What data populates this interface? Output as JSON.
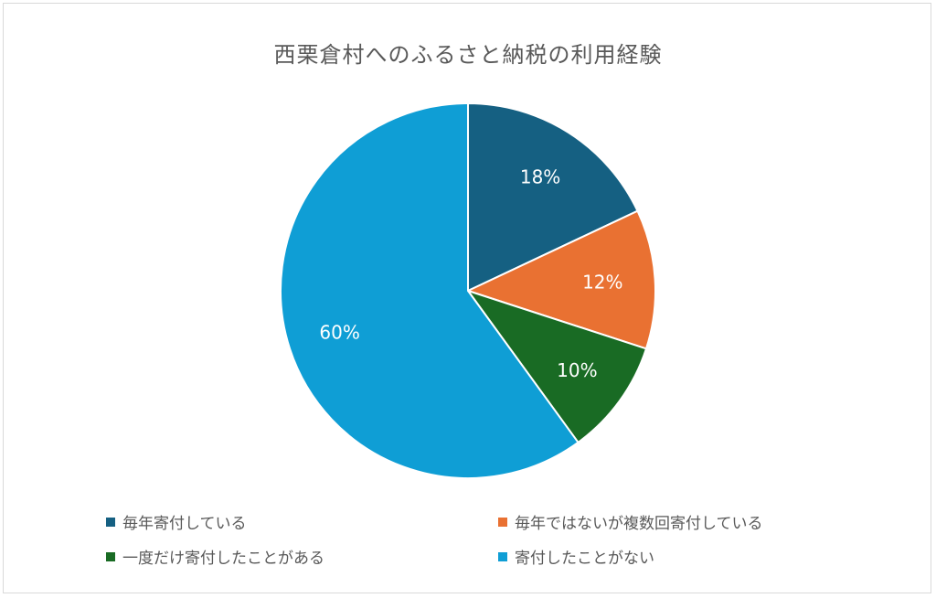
{
  "chart_data": {
    "type": "pie",
    "title": "西栗倉村へのふるさと納税の利用経験",
    "categories": [
      "毎年寄付している",
      "毎年ではないが複数回寄付している",
      "一度だけ寄付したことがある",
      "寄付したことがない"
    ],
    "values": [
      18,
      12,
      10,
      60
    ],
    "value_labels": [
      "18%",
      "12%",
      "10%",
      "60%"
    ],
    "unit": "%",
    "colors": [
      "#156082",
      "#e97132",
      "#196b24",
      "#0f9ed5"
    ],
    "legend_position": "bottom"
  }
}
